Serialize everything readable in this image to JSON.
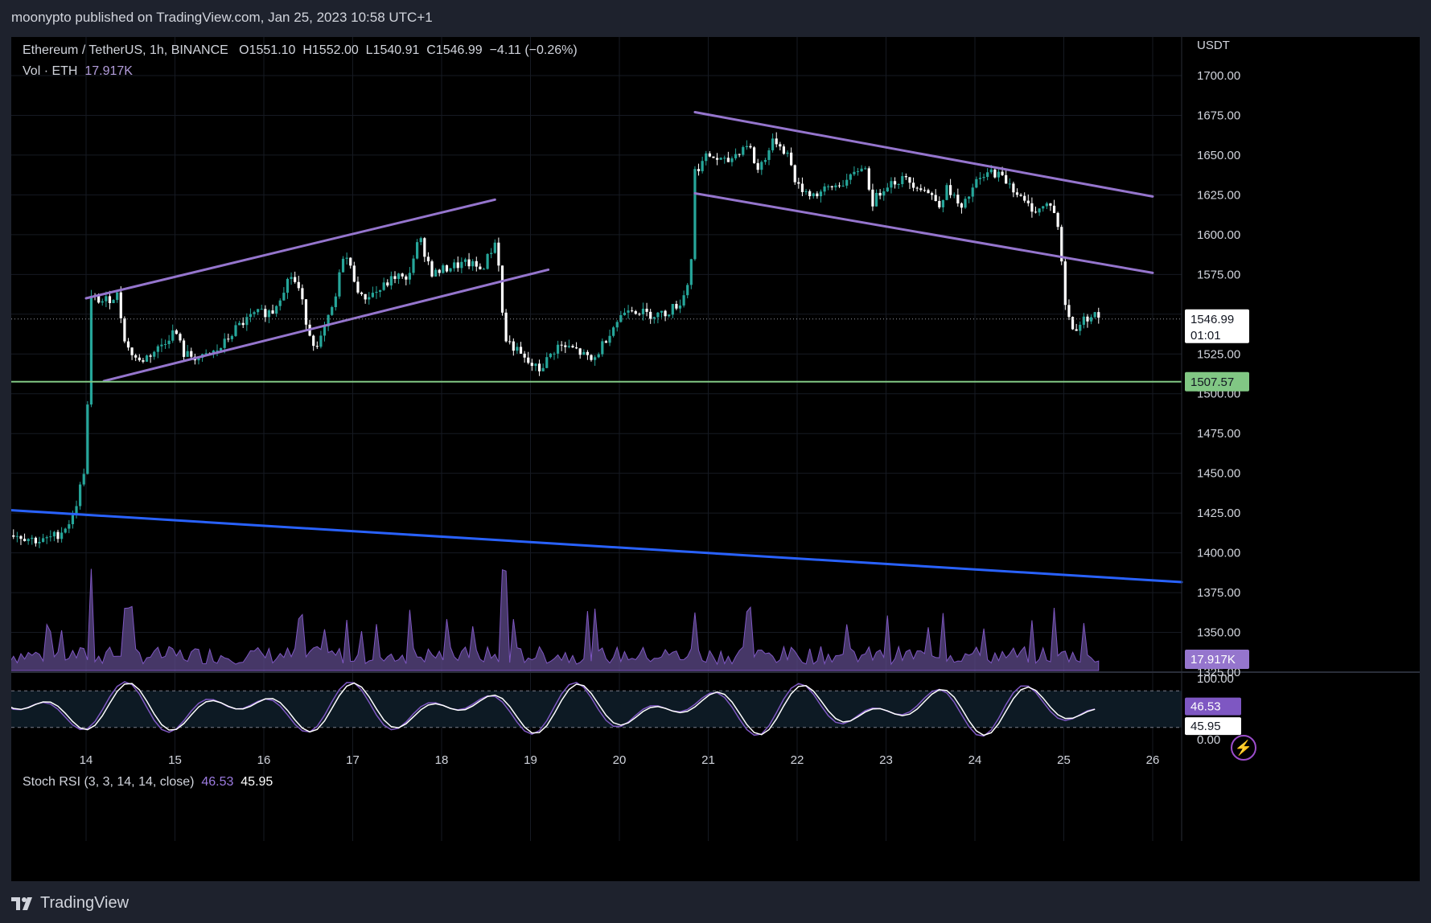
{
  "header": {
    "published": "moonypto published on TradingView.com, Jan 25, 2023 10:58 UTC+1"
  },
  "legend": {
    "symbol": "Ethereum / TetherUS, 1h, BINANCE",
    "open_label": "O",
    "open": "1551.10",
    "high_label": "H",
    "high": "1552.00",
    "low_label": "L",
    "low": "1540.91",
    "close_label": "C",
    "close": "1546.99",
    "change": "−4.11 (−0.26%)",
    "vol_label": "Vol · ETH",
    "vol_value": "17.917K"
  },
  "stoch": {
    "label": "Stoch RSI (3, 3, 14, 14, close)",
    "k": "46.53",
    "d": "45.95"
  },
  "price_scale": {
    "currency": "USDT",
    "ticks": [
      "1700.00",
      "1675.00",
      "1650.00",
      "1625.00",
      "1600.00",
      "1575.00",
      "1550.00",
      "1525.00",
      "1500.00",
      "1475.00",
      "1450.00",
      "1425.00",
      "1400.00",
      "1375.00",
      "1350.00",
      "1325.00"
    ],
    "last_price": "1546.99",
    "countdown": "01:01",
    "horizontal_level": "1507.57",
    "volume_tag": "17.917K"
  },
  "stoch_scale": {
    "ticks": [
      "100.00",
      "0.00"
    ],
    "k_tag": "46.53",
    "d_tag": "45.95"
  },
  "time_axis": {
    "labels": [
      "14",
      "15",
      "16",
      "17",
      "18",
      "19",
      "20",
      "21",
      "22",
      "23",
      "24",
      "25",
      "26"
    ]
  },
  "colors": {
    "up": "#26a69a",
    "down": "#ffffff",
    "channel": "#9575cd",
    "support": "#81c784",
    "trendline": "#2962ff",
    "volume": "#5e4a8a",
    "stoch_k": "#7e57c2",
    "stoch_d": "#ffffff"
  },
  "footer": {
    "brand": "TradingView"
  },
  "chart_data": {
    "type": "candlestick",
    "xlabel": "",
    "ylabel": "USDT",
    "ylim": [
      1318,
      1725
    ],
    "x_range_days": [
      13.1,
      26.4
    ],
    "close_path": [
      [
        13.1,
        1413
      ],
      [
        13.3,
        1410
      ],
      [
        13.5,
        1407
      ],
      [
        13.7,
        1412
      ],
      [
        13.85,
        1422
      ],
      [
        13.95,
        1445
      ],
      [
        14.0,
        1458
      ],
      [
        14.05,
        1560
      ],
      [
        14.2,
        1558
      ],
      [
        14.35,
        1562
      ],
      [
        14.45,
        1530
      ],
      [
        14.6,
        1520
      ],
      [
        14.8,
        1528
      ],
      [
        15.0,
        1540
      ],
      [
        15.1,
        1525
      ],
      [
        15.3,
        1522
      ],
      [
        15.5,
        1528
      ],
      [
        15.7,
        1542
      ],
      [
        15.9,
        1550
      ],
      [
        16.1,
        1552
      ],
      [
        16.3,
        1575
      ],
      [
        16.4,
        1565
      ],
      [
        16.5,
        1540
      ],
      [
        16.6,
        1528
      ],
      [
        16.8,
        1558
      ],
      [
        16.9,
        1590
      ],
      [
        17.0,
        1575
      ],
      [
        17.1,
        1560
      ],
      [
        17.3,
        1565
      ],
      [
        17.5,
        1575
      ],
      [
        17.6,
        1570
      ],
      [
        17.75,
        1598
      ],
      [
        17.9,
        1575
      ],
      [
        18.1,
        1580
      ],
      [
        18.3,
        1582
      ],
      [
        18.45,
        1578
      ],
      [
        18.6,
        1595
      ],
      [
        18.65,
        1580
      ],
      [
        18.7,
        1535
      ],
      [
        18.8,
        1530
      ],
      [
        18.95,
        1520
      ],
      [
        19.1,
        1515
      ],
      [
        19.3,
        1530
      ],
      [
        19.5,
        1528
      ],
      [
        19.7,
        1520
      ],
      [
        19.9,
        1540
      ],
      [
        20.1,
        1555
      ],
      [
        20.3,
        1550
      ],
      [
        20.5,
        1550
      ],
      [
        20.7,
        1558
      ],
      [
        20.8,
        1575
      ],
      [
        20.85,
        1640
      ],
      [
        21.0,
        1650
      ],
      [
        21.2,
        1645
      ],
      [
        21.45,
        1658
      ],
      [
        21.55,
        1640
      ],
      [
        21.75,
        1660
      ],
      [
        21.9,
        1650
      ],
      [
        22.0,
        1630
      ],
      [
        22.2,
        1625
      ],
      [
        22.4,
        1630
      ],
      [
        22.6,
        1635
      ],
      [
        22.75,
        1645
      ],
      [
        22.85,
        1620
      ],
      [
        23.0,
        1632
      ],
      [
        23.2,
        1635
      ],
      [
        23.4,
        1630
      ],
      [
        23.6,
        1620
      ],
      [
        23.7,
        1630
      ],
      [
        23.85,
        1615
      ],
      [
        24.0,
        1632
      ],
      [
        24.2,
        1640
      ],
      [
        24.4,
        1632
      ],
      [
        24.55,
        1620
      ],
      [
        24.7,
        1615
      ],
      [
        24.85,
        1620
      ],
      [
        24.95,
        1603
      ],
      [
        25.0,
        1560
      ],
      [
        25.1,
        1540
      ],
      [
        25.3,
        1550
      ],
      [
        25.4,
        1548
      ]
    ],
    "volume_spikes": [
      [
        14.05,
        "high"
      ],
      [
        14.45,
        "medium"
      ],
      [
        18.7,
        "high"
      ],
      [
        17.65,
        "medium"
      ],
      [
        20.85,
        "medium"
      ],
      [
        21.45,
        "medium"
      ],
      [
        23.65,
        "medium"
      ],
      [
        24.9,
        "medium"
      ]
    ],
    "drawings": [
      {
        "name": "ascending-channel-upper",
        "from": [
          14.0,
          1560
        ],
        "to": [
          18.6,
          1622
        ]
      },
      {
        "name": "ascending-channel-lower",
        "from": [
          14.2,
          1508
        ],
        "to": [
          19.2,
          1578
        ]
      },
      {
        "name": "descending-channel-upper",
        "from": [
          20.85,
          1677
        ],
        "to": [
          26.0,
          1624
        ]
      },
      {
        "name": "descending-channel-lower",
        "from": [
          20.85,
          1626
        ],
        "to": [
          26.0,
          1576
        ]
      },
      {
        "name": "support-level",
        "value": 1507.57
      },
      {
        "name": "long-trendline",
        "from": [
          13.1,
          1427
        ],
        "to": [
          26.5,
          1381
        ]
      }
    ],
    "stoch_rsi": {
      "levels": [
        80,
        20
      ],
      "k_last": 46.53,
      "d_last": 45.95
    }
  }
}
